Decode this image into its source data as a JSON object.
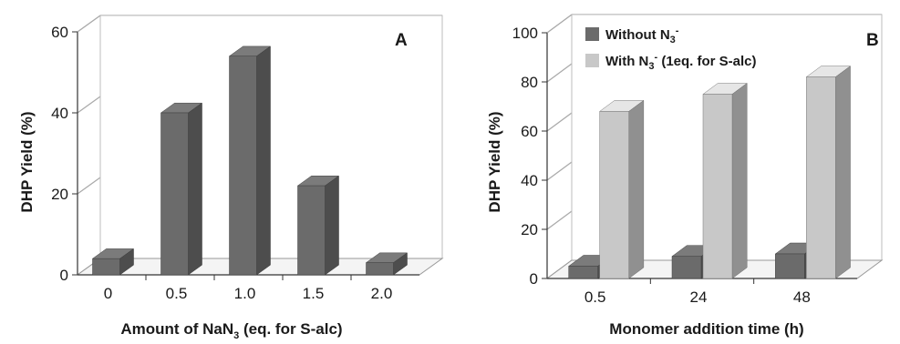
{
  "chart_data": [
    {
      "panel": "A",
      "type": "bar",
      "categories": [
        "0",
        "0.5",
        "1.0",
        "1.5",
        "2.0"
      ],
      "values": [
        4,
        40,
        54,
        22,
        3
      ],
      "xlabel_parts": [
        "Amount of NaN",
        "3",
        " (eq. for S-alc)"
      ],
      "ylabel": "DHP Yield (%)",
      "ylim": [
        0,
        60
      ],
      "yticks": [
        "0",
        "20",
        "40",
        "60"
      ],
      "grid": true,
      "color": "#6b6b6b"
    },
    {
      "panel": "B",
      "type": "bar",
      "categories": [
        "0.5",
        "24",
        "48"
      ],
      "series": [
        {
          "name_parts": [
            "Without N",
            "3",
            "-",
            ""
          ],
          "values": [
            5,
            9,
            10
          ],
          "color": "#6b6b6b"
        },
        {
          "name_parts": [
            "With N",
            "3",
            "-",
            " (1eq. for S-alc)"
          ],
          "values": [
            68,
            75,
            82
          ],
          "color": "#c8c8c8"
        }
      ],
      "xlabel": "Monomer addition time (h)",
      "ylabel": "DHP Yield (%)",
      "ylim": [
        0,
        100
      ],
      "yticks": [
        "0",
        "20",
        "40",
        "60",
        "80",
        "100"
      ],
      "grid": true,
      "legend_position": "top-left"
    }
  ]
}
